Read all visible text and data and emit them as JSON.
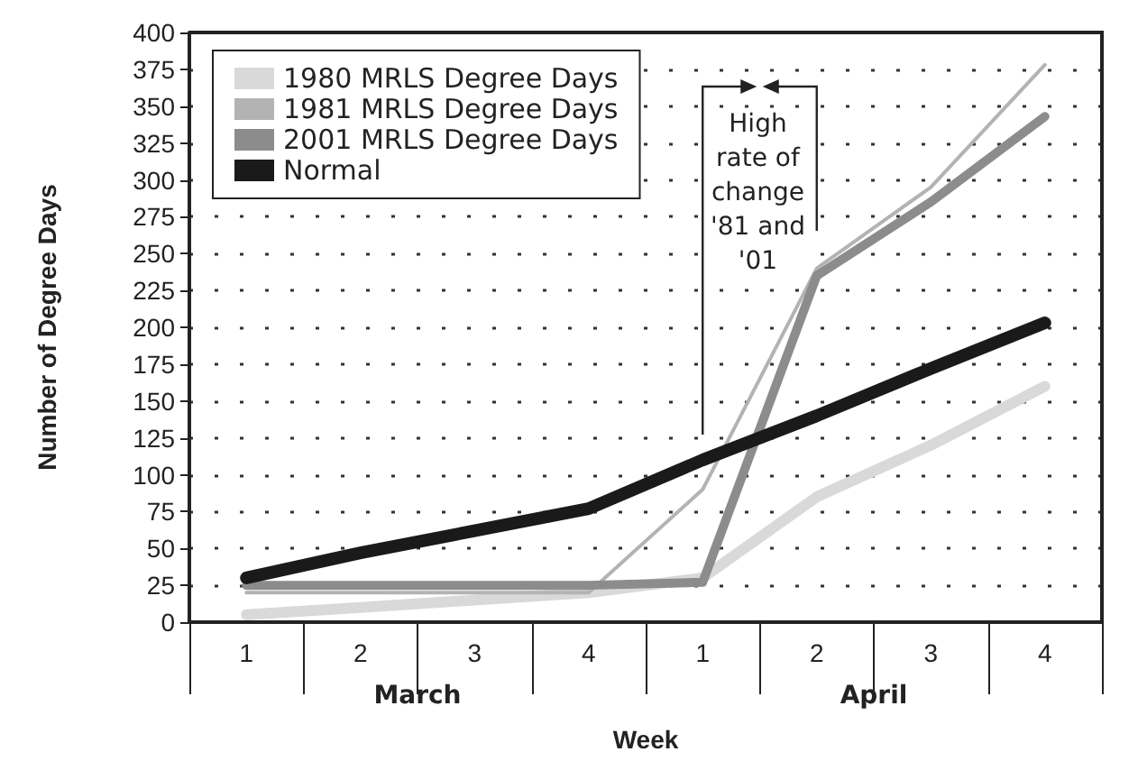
{
  "chart_data": {
    "type": "line",
    "xlabel": "Week",
    "ylabel": "Number of Degree Days",
    "categories": [
      "1",
      "2",
      "3",
      "4",
      "1",
      "2",
      "3",
      "4"
    ],
    "series": [
      {
        "name": "1980 MRLS Degree Days",
        "color": "#d9d9d9",
        "values": [
          5,
          10,
          15,
          20,
          30,
          85,
          120,
          160
        ]
      },
      {
        "name": "1981 MRLS Degree Days",
        "color": "#b3b3b3",
        "values": [
          20,
          20,
          20,
          20,
          90,
          240,
          295,
          378
        ]
      },
      {
        "name": "2001 MRLS Degree Days",
        "color": "#8c8c8c",
        "values": [
          25,
          25,
          25,
          25,
          27,
          235,
          285,
          343
        ]
      },
      {
        "name": "Normal",
        "color": "#1a1a1a",
        "values": [
          30,
          47,
          62,
          77,
          110,
          140,
          172,
          203
        ]
      }
    ],
    "ylim": [
      0,
      400
    ],
    "yticks": [
      0,
      25,
      50,
      75,
      100,
      125,
      150,
      175,
      200,
      225,
      250,
      275,
      300,
      325,
      350,
      375,
      400
    ],
    "grid": "y",
    "legend": "top left",
    "marker": "none",
    "line_style": "solid",
    "annotations": [
      "High rate of change '81 and '01",
      "March",
      "April"
    ]
  }
}
